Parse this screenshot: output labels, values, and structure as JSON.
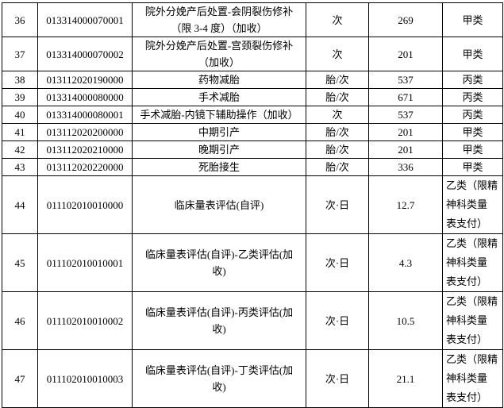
{
  "rows": [
    {
      "no": "36",
      "code": "013314000070001",
      "name": "院外分娩产后处置-会阴裂伤修补\n（限 3-4 度）（加收）",
      "unit": "次",
      "price": "269",
      "category": "甲类"
    },
    {
      "no": "37",
      "code": "013314000070002",
      "name": "院外分娩产后处置-宫颈裂伤修补\n（加收）",
      "unit": "次",
      "price": "201",
      "category": "甲类"
    },
    {
      "no": "38",
      "code": "013112020190000",
      "name": "药物减胎",
      "unit": "胎/次",
      "price": "537",
      "category": "丙类"
    },
    {
      "no": "39",
      "code": "013314000080000",
      "name": "手术减胎",
      "unit": "胎/次",
      "price": "671",
      "category": "丙类"
    },
    {
      "no": "40",
      "code": "013314000080001",
      "name": "手术减胎-内镜下辅助操作（加收）",
      "unit": "次",
      "price": "537",
      "category": "丙类"
    },
    {
      "no": "41",
      "code": "013112020200000",
      "name": "中期引产",
      "unit": "胎/次",
      "price": "201",
      "category": "甲类"
    },
    {
      "no": "42",
      "code": "013112020210000",
      "name": "晚期引产",
      "unit": "胎/次",
      "price": "201",
      "category": "甲类"
    },
    {
      "no": "43",
      "code": "013112020220000",
      "name": "死胎接生",
      "unit": "胎/次",
      "price": "336",
      "category": "甲类"
    },
    {
      "no": "44",
      "code": "011102010010000",
      "name": "临床量表评估(自评)",
      "unit": "次·日",
      "price": "12.7",
      "category": "乙类（限精\n神科类量\n表支付）"
    },
    {
      "no": "45",
      "code": "011102010010001",
      "name": "临床量表评估(自评)-乙类评估(加\n收)",
      "unit": "次·日",
      "price": "4.3",
      "category": "乙类（限精\n神科类量\n表支付）"
    },
    {
      "no": "46",
      "code": "011102010010002",
      "name": "临床量表评估(自评)-丙类评估(加\n收)",
      "unit": "次·日",
      "price": "10.5",
      "category": "乙类（限精\n神科类量\n表支付）"
    },
    {
      "no": "47",
      "code": "011102010010003",
      "name": "临床量表评估(自评)-丁类评估(加\n收)",
      "unit": "次·日",
      "price": "21.1",
      "category": "乙类（限精\n神科类量\n表支付）"
    }
  ]
}
